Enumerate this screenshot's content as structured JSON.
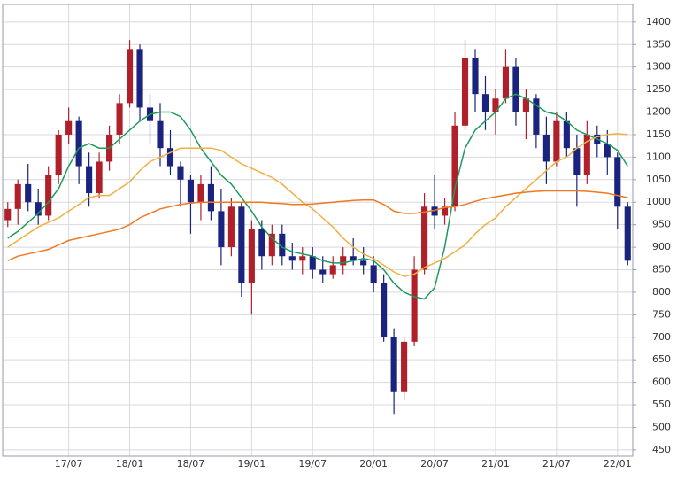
{
  "chart_data": {
    "type": "candlestick",
    "categories": [
      null,
      null,
      null,
      null,
      null,
      null,
      "17/07",
      null,
      null,
      null,
      null,
      null,
      "18/01",
      null,
      null,
      null,
      null,
      null,
      "18/07",
      null,
      null,
      null,
      null,
      null,
      "19/01",
      null,
      null,
      null,
      null,
      null,
      "19/07",
      null,
      null,
      null,
      null,
      null,
      "20/01",
      null,
      null,
      null,
      null,
      null,
      "20/07",
      null,
      null,
      null,
      null,
      null,
      "21/01",
      null,
      null,
      null,
      null,
      null,
      "21/07",
      null,
      null,
      null,
      null,
      null,
      "22/01",
      null
    ],
    "open": [
      960,
      985,
      1040,
      1000,
      970,
      1060,
      1150,
      1180,
      1080,
      1020,
      1090,
      1150,
      1220,
      1340,
      1210,
      1180,
      1120,
      1080,
      1050,
      1000,
      1040,
      980,
      900,
      990,
      820,
      940,
      880,
      930,
      880,
      870,
      880,
      850,
      840,
      860,
      880,
      870,
      860,
      820,
      700,
      580,
      690,
      850,
      990,
      970,
      990,
      1170,
      1320,
      1240,
      1200,
      1230,
      1300,
      1200,
      1230,
      1150,
      1090,
      1180,
      1120,
      1060,
      1150,
      1130,
      1100,
      990
    ],
    "high": [
      1000,
      1050,
      1085,
      1030,
      1080,
      1160,
      1210,
      1190,
      1110,
      1110,
      1170,
      1240,
      1360,
      1350,
      1240,
      1220,
      1160,
      1090,
      1060,
      1060,
      1080,
      1030,
      1010,
      1000,
      960,
      960,
      950,
      950,
      910,
      900,
      900,
      880,
      880,
      900,
      920,
      900,
      880,
      840,
      720,
      700,
      880,
      1020,
      1060,
      1010,
      1200,
      1360,
      1340,
      1280,
      1250,
      1340,
      1320,
      1250,
      1240,
      1190,
      1200,
      1200,
      1150,
      1180,
      1170,
      1160,
      1110,
      1000
    ],
    "low": [
      945,
      950,
      980,
      950,
      960,
      1040,
      1130,
      1040,
      990,
      1010,
      1070,
      1130,
      1210,
      1180,
      1130,
      1080,
      1060,
      990,
      930,
      960,
      960,
      860,
      880,
      790,
      750,
      850,
      860,
      860,
      850,
      840,
      830,
      820,
      830,
      840,
      860,
      840,
      800,
      690,
      530,
      560,
      680,
      840,
      940,
      950,
      980,
      1160,
      1200,
      1160,
      1150,
      1220,
      1170,
      1140,
      1120,
      1040,
      1080,
      1100,
      990,
      1040,
      1100,
      1060,
      940,
      860
    ],
    "close": [
      985,
      1040,
      1000,
      970,
      1060,
      1150,
      1180,
      1080,
      1020,
      1090,
      1150,
      1220,
      1340,
      1210,
      1180,
      1120,
      1080,
      1050,
      1000,
      1040,
      980,
      900,
      990,
      820,
      940,
      880,
      930,
      880,
      870,
      880,
      850,
      840,
      860,
      880,
      870,
      860,
      820,
      700,
      580,
      690,
      850,
      990,
      970,
      990,
      1170,
      1320,
      1240,
      1200,
      1230,
      1300,
      1200,
      1230,
      1150,
      1090,
      1180,
      1120,
      1060,
      1150,
      1130,
      1100,
      990,
      870
    ],
    "up_color": "#b0202a",
    "down_color": "#1a237e",
    "lines": [
      {
        "color": "#1e9a5a",
        "values": [
          920,
          935,
          955,
          975,
          1000,
          1030,
          1080,
          1120,
          1130,
          1120,
          1120,
          1140,
          1160,
          1180,
          1195,
          1200,
          1200,
          1190,
          1160,
          1120,
          1090,
          1060,
          1040,
          1010,
          980,
          945,
          920,
          900,
          890,
          885,
          880,
          870,
          865,
          865,
          870,
          875,
          870,
          850,
          820,
          800,
          790,
          785,
          810,
          900,
          1030,
          1120,
          1160,
          1180,
          1200,
          1230,
          1240,
          1230,
          1215,
          1200,
          1195,
          1180,
          1160,
          1150,
          1140,
          1130,
          1115,
          1080
        ]
      },
      {
        "color": "#f0b040",
        "values": [
          900,
          915,
          930,
          945,
          955,
          965,
          980,
          995,
          1010,
          1015,
          1015,
          1030,
          1045,
          1070,
          1090,
          1100,
          1110,
          1120,
          1120,
          1120,
          1120,
          1115,
          1100,
          1085,
          1075,
          1065,
          1055,
          1040,
          1020,
          1000,
          985,
          965,
          945,
          920,
          900,
          885,
          875,
          860,
          845,
          835,
          840,
          855,
          865,
          875,
          890,
          905,
          930,
          950,
          965,
          990,
          1010,
          1030,
          1050,
          1070,
          1090,
          1100,
          1120,
          1135,
          1145,
          1150,
          1152,
          1150
        ]
      },
      {
        "color": "#f07820",
        "values": [
          870,
          880,
          885,
          890,
          895,
          905,
          915,
          920,
          925,
          930,
          935,
          940,
          950,
          965,
          975,
          985,
          990,
          995,
          998,
          1000,
          1000,
          1000,
          1000,
          1000,
          1000,
          1000,
          998,
          997,
          995,
          995,
          996,
          998,
          1000,
          1002,
          1004,
          1005,
          1005,
          995,
          980,
          975,
          975,
          978,
          982,
          988,
          990,
          995,
          1002,
          1008,
          1012,
          1016,
          1020,
          1022,
          1024,
          1025,
          1025,
          1025,
          1025,
          1024,
          1022,
          1020,
          1015,
          1010
        ]
      }
    ],
    "ylim": [
      436,
      1439
    ],
    "yticks": [
      450,
      500,
      550,
      600,
      650,
      700,
      750,
      800,
      850,
      900,
      950,
      1000,
      1050,
      1100,
      1150,
      1200,
      1250,
      1300,
      1350,
      1400
    ],
    "grid": true
  }
}
